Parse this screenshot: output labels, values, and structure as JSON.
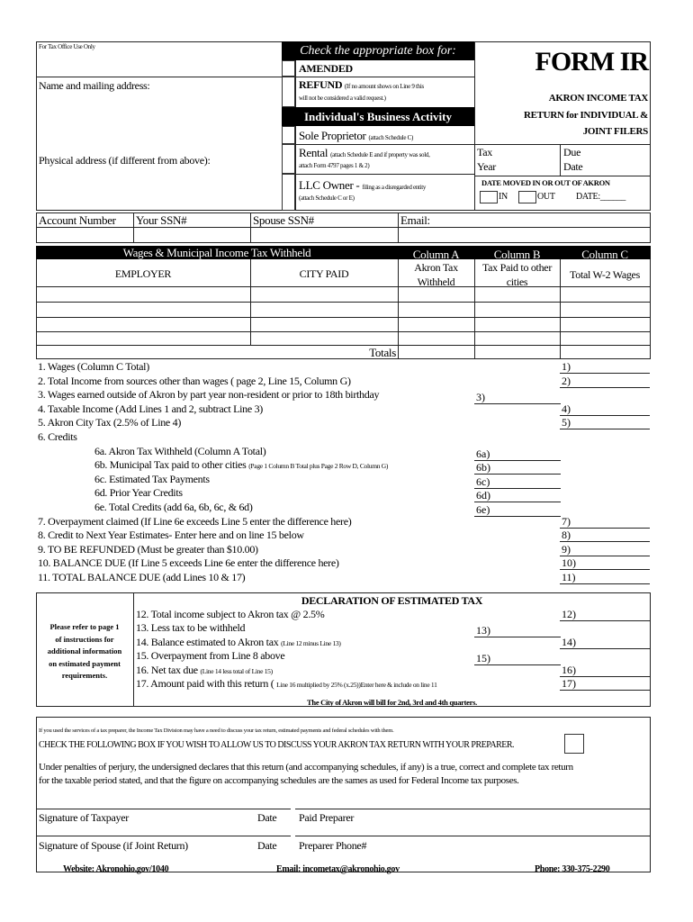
{
  "header": {
    "office_use": "For Tax Office Use Only",
    "name_address": "Name and mailing address:",
    "physical_address": "Physical address (if different from above):",
    "check_box_title": "Check the appropriate box for:",
    "amended": "AMENDED",
    "refund": "REFUND",
    "refund_note": "(If no amount shows on Line 9 this",
    "refund_note2": "will not be considered a valid request.)",
    "business_title": "Individual's Business Activity",
    "sole": "Sole Proprietor",
    "sole_note": "(attach Schedule C)",
    "rental": "Rental",
    "rental_note": "(attach Schedule E and if property was sold,",
    "rental_note2": "attach Form 4797 pages 1 & 2)",
    "llc": "LLC Owner -",
    "llc_note": "filing as a disregarded entity",
    "llc_note2": "(attach Schedule C or E)",
    "form_title": "FORM IR",
    "subtitle1": "AKRON INCOME TAX",
    "subtitle2": "RETURN for INDIVIDUAL &",
    "subtitle3": "JOINT FILERS",
    "tax": "Tax",
    "year": "Year",
    "due": "Due",
    "date": "Date",
    "moved": "DATE MOVED IN OR OUT OF AKRON",
    "in": "IN",
    "out": "OUT",
    "moved_date": "DATE:______"
  },
  "ids": {
    "account": "Account Number",
    "ssn": "Your SSN#",
    "spouse": "Spouse SSN#",
    "email": "Email:"
  },
  "wages": {
    "title": "Wages & Municipal Income Tax Withheld",
    "employer": "EMPLOYER",
    "city": "CITY PAID",
    "col_a": "Column A",
    "col_a_sub1": "Akron Tax",
    "col_a_sub2": "Withheld",
    "col_b": "Column B",
    "col_b_sub1": "Tax Paid to other",
    "col_b_sub2": "cities",
    "col_c": "Column C",
    "col_c_sub": "Total W-2 Wages",
    "totals": "Totals"
  },
  "lines": [
    {
      "text": "1. Wages (Column C Total)",
      "note": "",
      "label": "1)",
      "col": "right",
      "indent": false
    },
    {
      "text": "2. Total Income from sources other than wages ( page 2, Line 15, Column G)",
      "note": "",
      "label": "2)",
      "col": "right",
      "indent": false
    },
    {
      "text": "3. Wages earned outside of Akron by part year non-resident or prior to 18th birthday",
      "note": "",
      "label": "3)",
      "col": "mid",
      "indent": false
    },
    {
      "text": "4. Taxable Income (Add Lines 1 and 2, subtract Line 3)",
      "note": "",
      "label": "4)",
      "col": "right",
      "indent": false
    },
    {
      "text": "5. Akron City Tax (2.5% of Line 4)",
      "note": "",
      "label": "5)",
      "col": "right",
      "indent": false
    },
    {
      "text": "6. Credits",
      "note": "",
      "label": "",
      "col": "none",
      "indent": false
    },
    {
      "text": "6a. Akron Tax Withheld (Column A Total)",
      "note": "",
      "label": "6a)",
      "col": "mid",
      "indent": true
    },
    {
      "text": "6b. Municipal Tax paid to other cities",
      "note": "(Page 1 Column B Total plus Page 2 Row D, Column G)",
      "label": "6b)",
      "col": "mid",
      "indent": true
    },
    {
      "text": "6c. Estimated Tax Payments",
      "note": "",
      "label": "6c)",
      "col": "mid",
      "indent": true
    },
    {
      "text": "6d. Prior Year Credits",
      "note": "",
      "label": "6d)",
      "col": "mid",
      "indent": true
    },
    {
      "text": "6e. Total Credits (add 6a, 6b, 6c, & 6d)",
      "note": "",
      "label": "6e)",
      "col": "mid",
      "indent": true
    },
    {
      "text": "7. Overpayment claimed (If Line 6e exceeds Line 5 enter the difference here)",
      "note": "",
      "label": "7)",
      "col": "right",
      "indent": false
    },
    {
      "text": "8. Credit to Next Year Estimates- Enter here and on line 15 below",
      "note": "",
      "label": "8)",
      "col": "right",
      "indent": false
    },
    {
      "text": "9. TO BE REFUNDED (Must be greater than $10.00)",
      "note": "",
      "label": "9)",
      "col": "right",
      "indent": false
    },
    {
      "text": "10. BALANCE DUE (If Line 5 exceeds Line 6e enter the difference here)",
      "note": "",
      "label": "10)",
      "col": "right",
      "indent": false
    },
    {
      "text": "11. TOTAL BALANCE DUE (add Lines 10 & 17)",
      "note": "",
      "label": "11)",
      "col": "right",
      "indent": false
    }
  ],
  "declaration": {
    "title": "DECLARATION OF ESTIMATED TAX",
    "side_note": [
      "Please refer to page 1",
      "of instructions for",
      "additional information",
      "on estimated payment",
      "requirements."
    ],
    "lines": [
      {
        "text": "12. Total income subject to Akron tax @ 2.5%",
        "note": "",
        "label": "12)",
        "col": "right"
      },
      {
        "text": "13. Less tax to be withheld",
        "note": "",
        "label": "13)",
        "col": "mid"
      },
      {
        "text": "14. Balance estimated to Akron tax",
        "note": "(Line 12 minus Line 13)",
        "label": "14)",
        "col": "right"
      },
      {
        "text": "15. Overpayment from Line 8 above",
        "note": "",
        "label": "15)",
        "col": "mid"
      },
      {
        "text": "16. Net tax due",
        "note": "(Line 14 less total of Line 15)",
        "label": "16)",
        "col": "right"
      },
      {
        "text": "17. Amount paid with this return (",
        "note": "Line 16 multiplied by 25% (x.25))Enter here & include on line 11",
        "label": "17)",
        "col": "right"
      }
    ],
    "billing": "The City of Akron will bill for 2nd, 3rd and 4th quarters."
  },
  "preparer": {
    "intro": "If you used the services of a tax preparer, the Income Tax Division may have a need to discuss your tax return, estimated payments and federal schedules with them.",
    "check": "CHECK THE FOLLOWING BOX IF YOU WISH TO ALLOW US TO DISCUSS YOUR AKRON TAX RETURN WITH YOUR PREPARER.",
    "perjury1": "Under penalties of perjury, the undersigned declares that this return (and accompanying schedules, if any) is a true, correct and complete tax return",
    "perjury2": "for the taxable period stated, and that the figure on accompanying schedules are the sames as used for Federal Income tax purposes.",
    "sig_taxpayer": "Signature of Taxpayer",
    "date1": "Date",
    "paid_preparer": "Paid Preparer",
    "sig_spouse": "Signature of Spouse (if Joint Return)",
    "date2": "Date",
    "preparer_phone": "Preparer Phone#"
  },
  "footer": {
    "website": "Website: Akronohio.gov/1040",
    "email": "Email: incometax@akronohio.gov",
    "phone": "Phone: 330-375-2290"
  }
}
